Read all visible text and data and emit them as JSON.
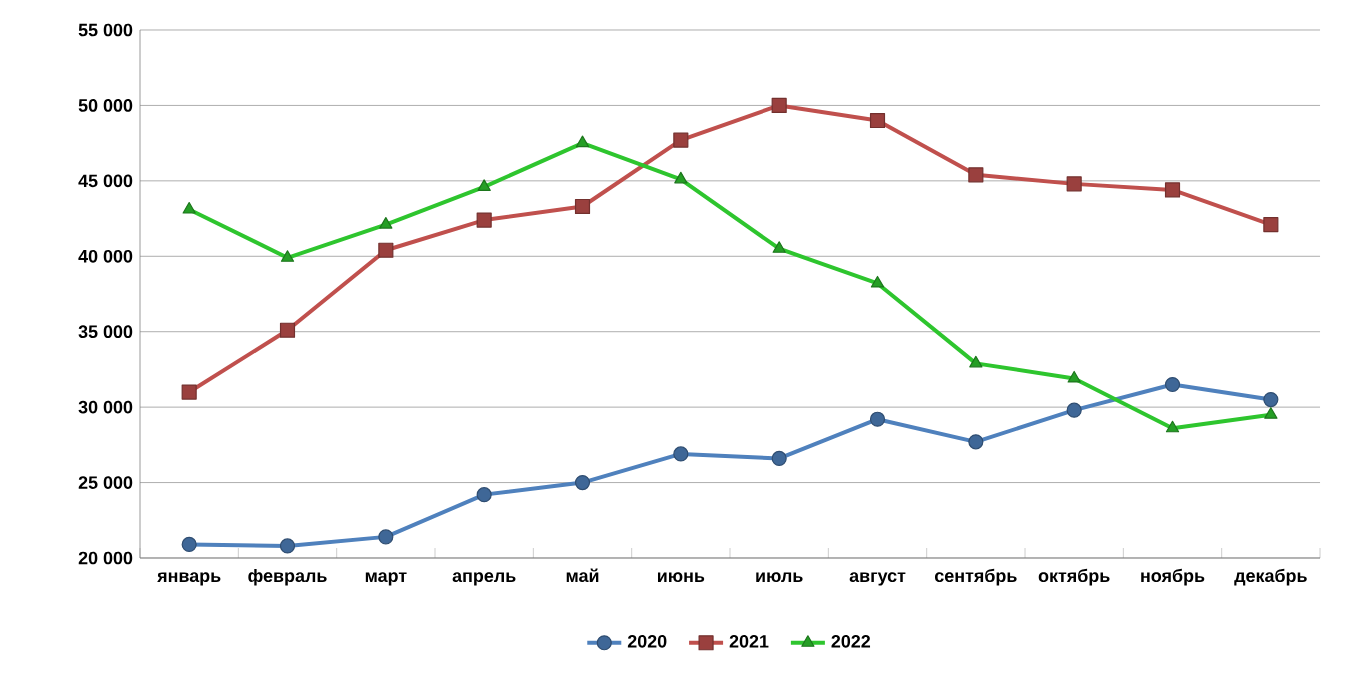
{
  "chart_data": {
    "type": "line",
    "categories": [
      "январь",
      "февраль",
      "март",
      "апрель",
      "май",
      "июнь",
      "июль",
      "август",
      "сентябрь",
      "октябрь",
      "ноябрь",
      "декабрь"
    ],
    "series": [
      {
        "name": "2020",
        "color": "#4f81bd",
        "marker": "circle",
        "values": [
          20900,
          20800,
          21400,
          24200,
          25000,
          26900,
          26600,
          29200,
          27700,
          29800,
          31500,
          30500
        ]
      },
      {
        "name": "2021",
        "color": "#c0504d",
        "marker": "square",
        "values": [
          31000,
          35100,
          40400,
          42400,
          43300,
          47700,
          50000,
          49000,
          45400,
          44800,
          44400,
          42100
        ]
      },
      {
        "name": "2022",
        "color": "#2ec52e",
        "marker": "triangle",
        "values": [
          43100,
          39900,
          42100,
          44600,
          47500,
          45100,
          40500,
          38200,
          32900,
          31900,
          28600,
          29500
        ]
      }
    ],
    "ylim": [
      20000,
      55000
    ],
    "yticks": [
      {
        "value": 20000,
        "label": "20 000"
      },
      {
        "value": 25000,
        "label": "25 000"
      },
      {
        "value": 30000,
        "label": "30 000"
      },
      {
        "value": 35000,
        "label": "35 000"
      },
      {
        "value": 40000,
        "label": "40 000"
      },
      {
        "value": 45000,
        "label": "45 000"
      },
      {
        "value": 50000,
        "label": "50 000"
      },
      {
        "value": 55000,
        "label": "55 000"
      }
    ],
    "grid": "y",
    "legend": "bottom",
    "line_style": "solid"
  }
}
